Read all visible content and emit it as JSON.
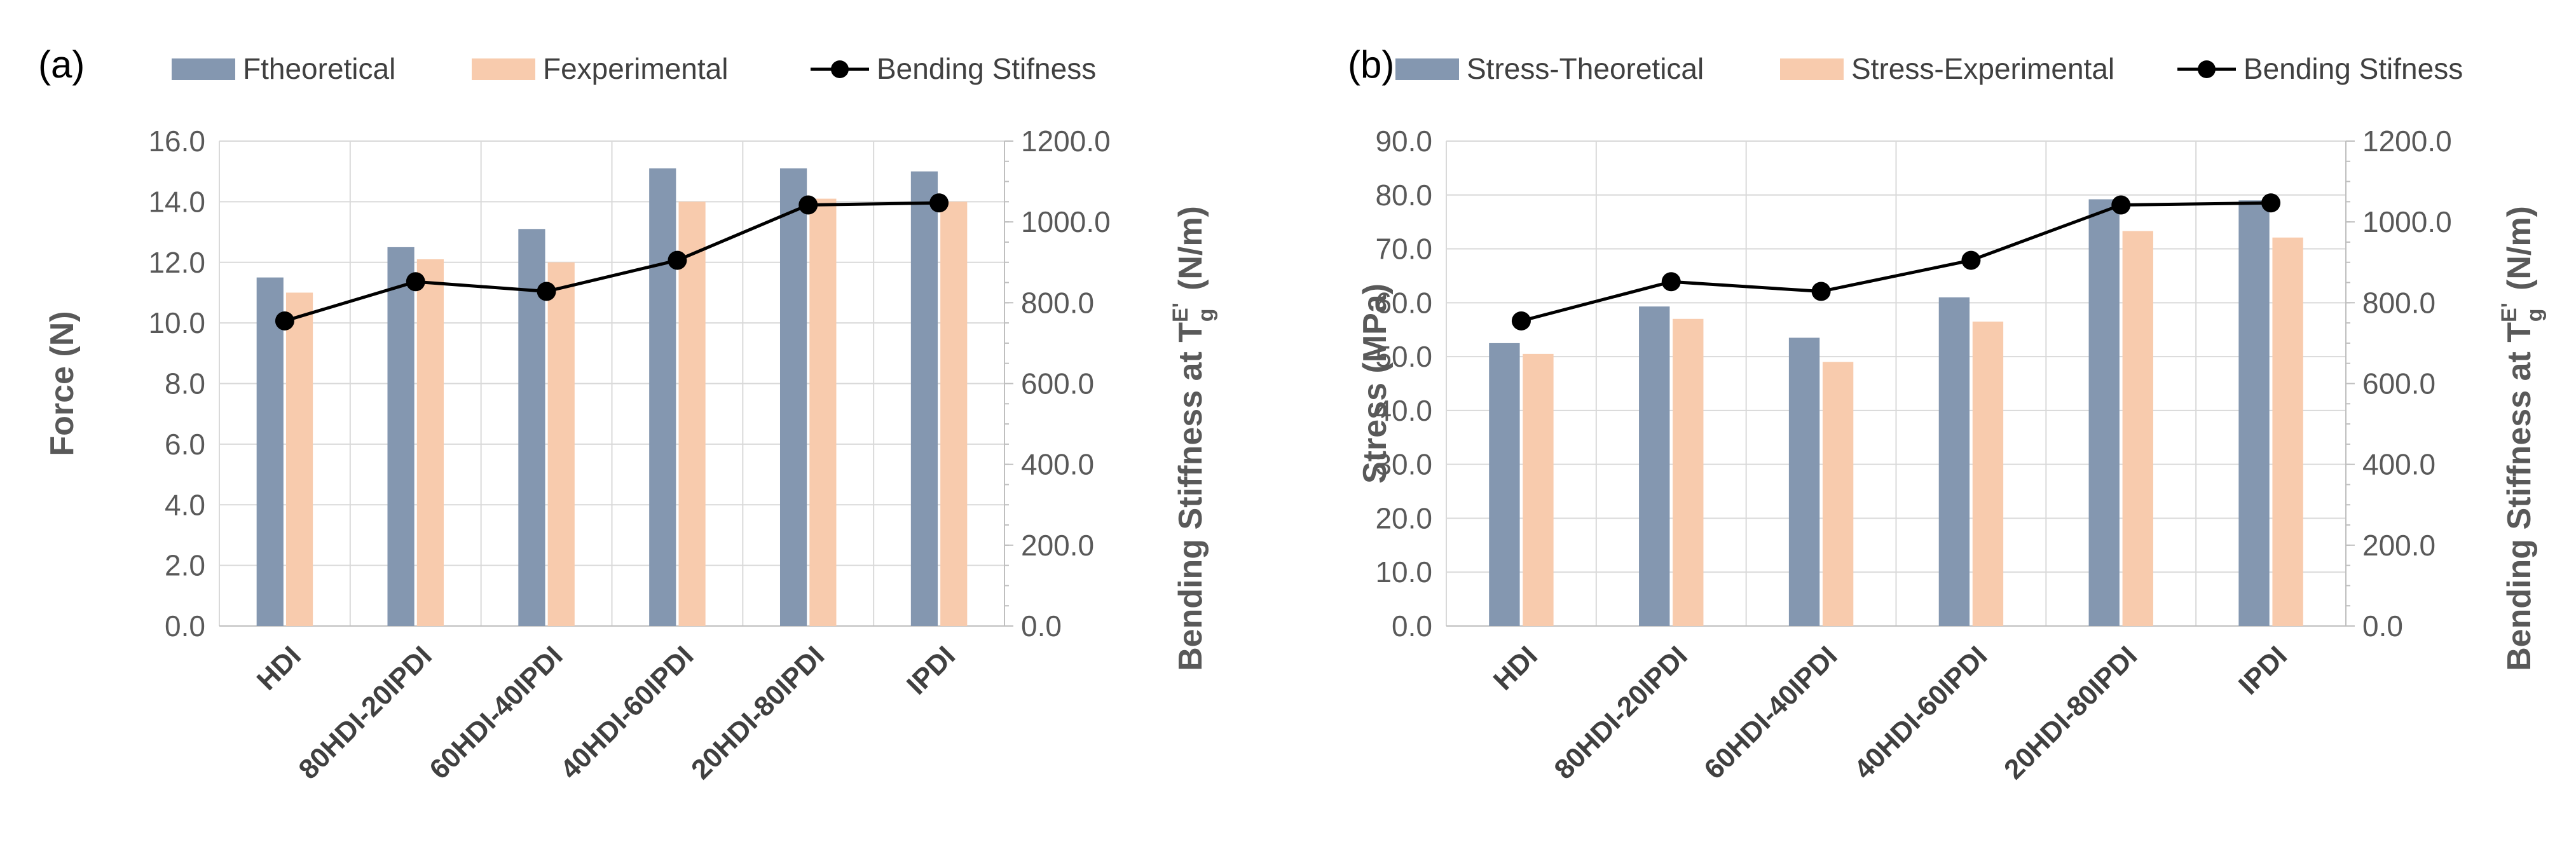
{
  "colors": {
    "theoretical": "#8497b0",
    "experimental": "#f8cbad",
    "line": "#000000"
  },
  "chart_data": [
    {
      "type": "bar",
      "panel_label": "(a)",
      "categories": [
        "HDI",
        "80HDI-20IPDI",
        "60HDI-40IPDI",
        "40HDI-60IPDI",
        "20HDI-80IPDI",
        "IPDI"
      ],
      "series": [
        {
          "name": "Ftheoretical",
          "type": "bar",
          "axis": "left",
          "values": [
            11.5,
            12.5,
            13.1,
            15.1,
            15.1,
            15.0
          ]
        },
        {
          "name": "Fexperimental",
          "type": "bar",
          "axis": "left",
          "values": [
            11.0,
            12.1,
            12.0,
            14.0,
            14.1,
            14.0
          ]
        },
        {
          "name": "Bending Stifness",
          "type": "line",
          "axis": "right",
          "values": [
            755,
            852,
            828,
            905,
            1042,
            1047
          ]
        }
      ],
      "ylabel": "Force (N)",
      "y2label_main": "Bending Stiffness at T",
      "y2label_sub": "g",
      "y2label_sup": "E'",
      "y2label_unit": " (N/m)",
      "ylim": [
        0,
        16
      ],
      "yticks": [
        "0.0",
        "2.0",
        "4.0",
        "6.0",
        "8.0",
        "10.0",
        "12.0",
        "14.0",
        "16.0"
      ],
      "y2lim": [
        0,
        1200
      ],
      "y2ticks": [
        "0.0",
        "200.0",
        "400.0",
        "600.0",
        "800.0",
        "1000.0",
        "1200.0"
      ],
      "grid": true,
      "legend": "top"
    },
    {
      "type": "bar",
      "panel_label": "(b)",
      "categories": [
        "HDI",
        "80HDI-20IPDI",
        "60HDI-40IPDI",
        "40HDI-60IPDI",
        "20HDI-80IPDI",
        "IPDI"
      ],
      "series": [
        {
          "name": "Stress-Theoretical",
          "type": "bar",
          "axis": "left",
          "values": [
            52.5,
            59.3,
            53.5,
            61.0,
            79.2,
            79.0
          ]
        },
        {
          "name": "Stress-Experimental",
          "type": "bar",
          "axis": "left",
          "values": [
            50.5,
            57.0,
            49.0,
            56.5,
            73.3,
            72.1
          ]
        },
        {
          "name": "Bending Stifness",
          "type": "line",
          "axis": "right",
          "values": [
            755,
            852,
            828,
            905,
            1042,
            1047
          ]
        }
      ],
      "ylabel": "Stress (MPa)",
      "y2label_main": "Bending Stiffness at T",
      "y2label_sub": "g",
      "y2label_sup": "E'",
      "y2label_unit": " (N/m)",
      "ylim": [
        0,
        90
      ],
      "yticks": [
        "0.0",
        "10.0",
        "20.0",
        "30.0",
        "40.0",
        "50.0",
        "60.0",
        "70.0",
        "80.0",
        "90.0"
      ],
      "y2lim": [
        0,
        1200
      ],
      "y2ticks": [
        "0.0",
        "200.0",
        "400.0",
        "600.0",
        "800.0",
        "1000.0",
        "1200.0"
      ],
      "grid": true,
      "legend": "top"
    }
  ]
}
